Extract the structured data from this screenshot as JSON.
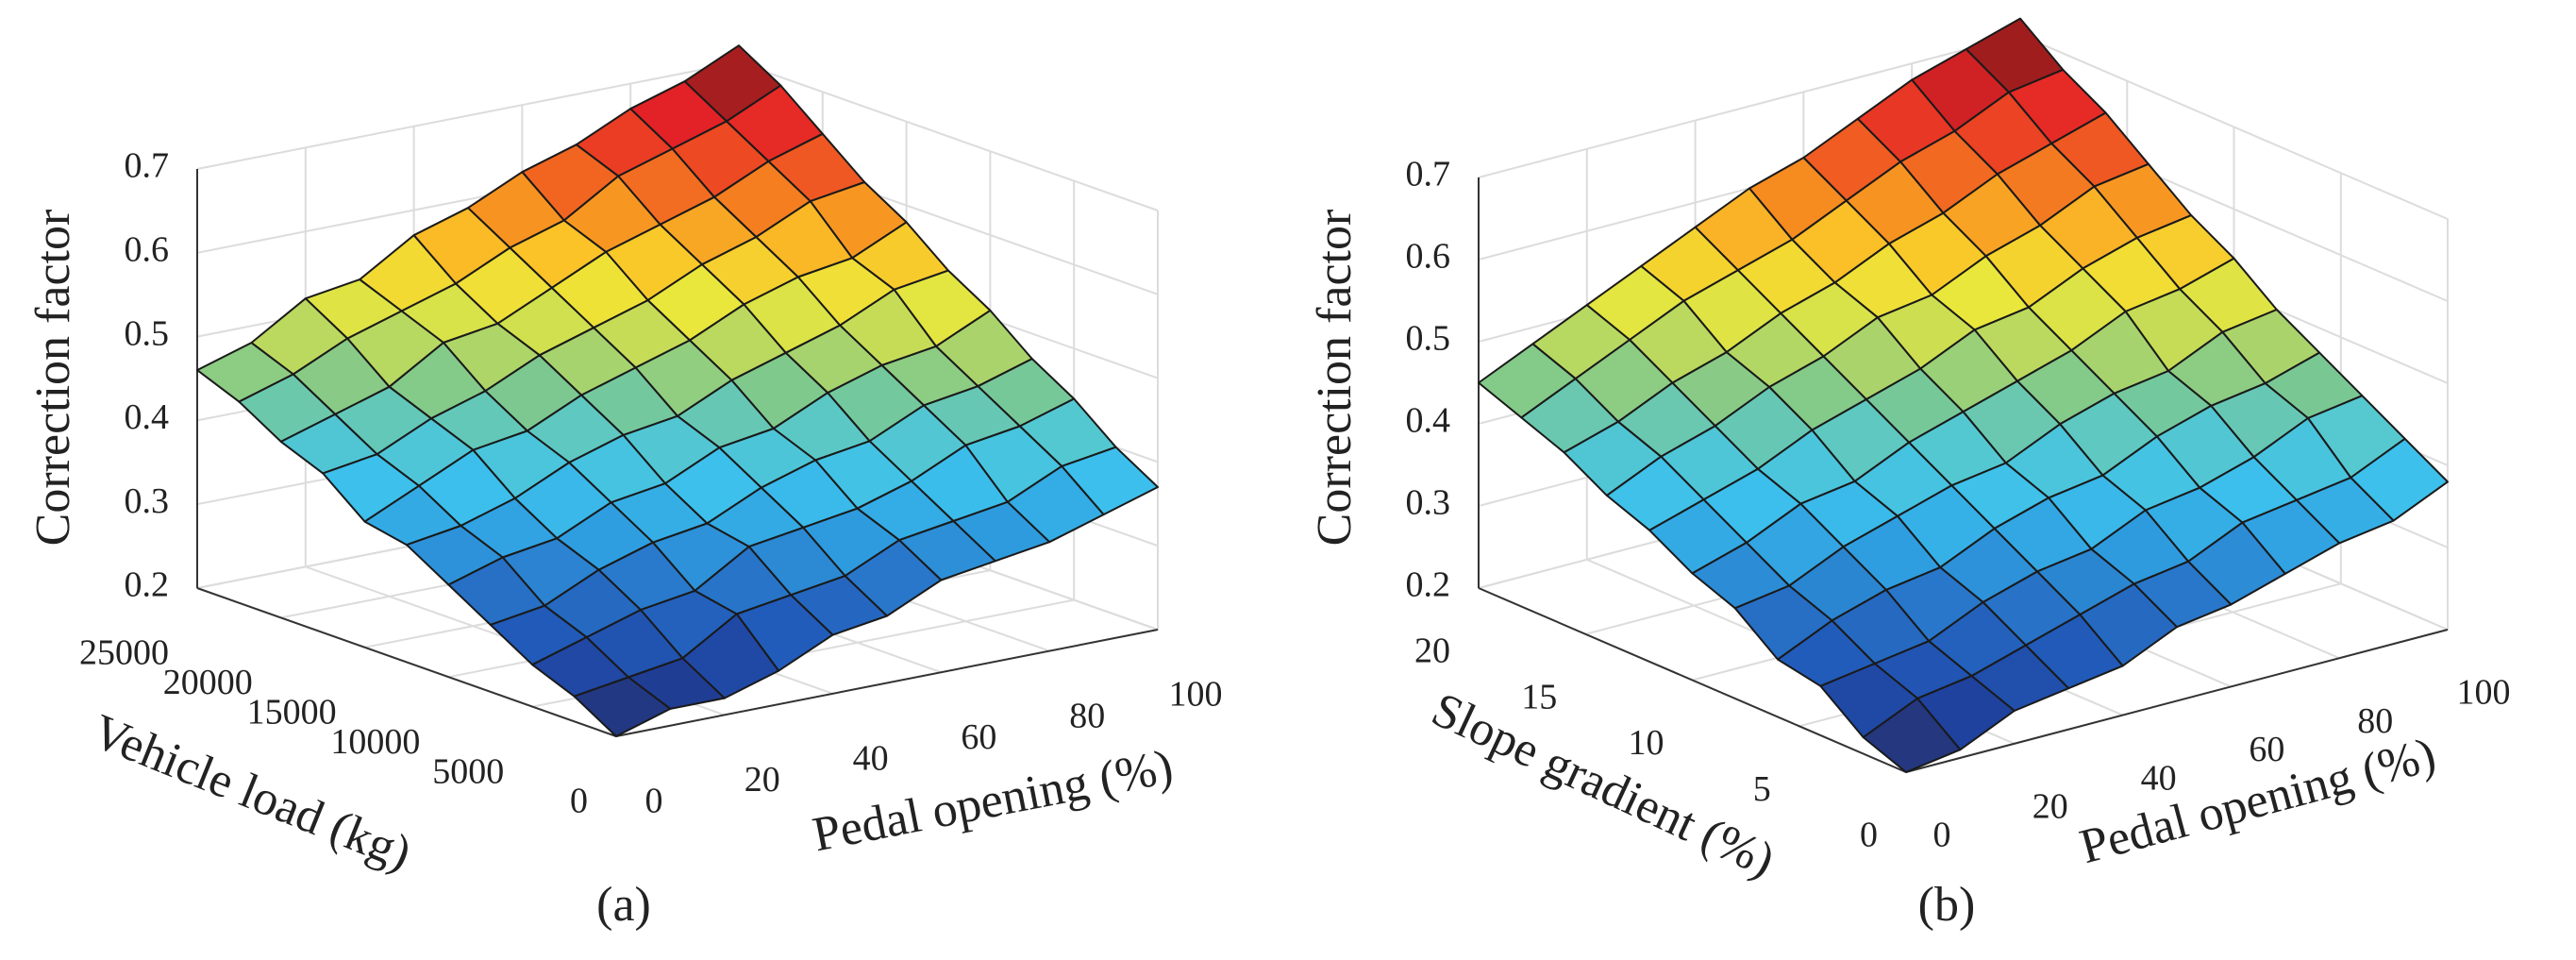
{
  "chart_data": [
    {
      "type": "surface",
      "panel_label": "(a)",
      "xlabel": "Pedal opening (%)",
      "ylabel": "Vehicle load (kg)",
      "zlabel": "Correction factor",
      "x": [
        0,
        10,
        20,
        30,
        40,
        50,
        60,
        70,
        80,
        90,
        100
      ],
      "y": [
        0,
        2500,
        5000,
        7500,
        10000,
        12500,
        15000,
        17500,
        20000,
        22500,
        25000
      ],
      "z": [
        [
          0.2,
          0.22,
          0.22,
          0.24,
          0.27,
          0.28,
          0.31,
          0.32,
          0.33,
          0.35,
          0.37
        ],
        [
          0.23,
          0.24,
          0.25,
          0.29,
          0.3,
          0.31,
          0.34,
          0.35,
          0.36,
          0.39,
          0.4
        ],
        [
          0.25,
          0.27,
          0.29,
          0.3,
          0.34,
          0.35,
          0.36,
          0.38,
          0.41,
          0.42,
          0.44
        ],
        [
          0.28,
          0.29,
          0.32,
          0.34,
          0.35,
          0.38,
          0.4,
          0.41,
          0.44,
          0.45,
          0.47
        ],
        [
          0.31,
          0.33,
          0.34,
          0.37,
          0.38,
          0.41,
          0.42,
          0.45,
          0.47,
          0.48,
          0.51
        ],
        [
          0.34,
          0.35,
          0.37,
          0.4,
          0.42,
          0.43,
          0.46,
          0.48,
          0.5,
          0.53,
          0.54
        ],
        [
          0.35,
          0.38,
          0.41,
          0.42,
          0.45,
          0.47,
          0.49,
          0.52,
          0.54,
          0.55,
          0.58
        ],
        [
          0.39,
          0.4,
          0.43,
          0.45,
          0.48,
          0.5,
          0.52,
          0.55,
          0.57,
          0.6,
          0.61
        ],
        [
          0.41,
          0.43,
          0.45,
          0.49,
          0.5,
          0.53,
          0.56,
          0.58,
          0.6,
          0.63,
          0.65
        ],
        [
          0.44,
          0.46,
          0.49,
          0.51,
          0.53,
          0.56,
          0.58,
          0.62,
          0.64,
          0.66,
          0.69
        ],
        [
          0.46,
          0.48,
          0.52,
          0.53,
          0.57,
          0.59,
          0.62,
          0.64,
          0.67,
          0.69,
          0.72
        ]
      ],
      "xlim": [
        0,
        100
      ],
      "ylim": [
        0,
        25000
      ],
      "zlim": [
        0.2,
        0.7
      ],
      "xticks": [
        0,
        20,
        40,
        60,
        80,
        100
      ],
      "yticks": [
        0,
        5000,
        10000,
        15000,
        20000,
        25000
      ],
      "zticks": [
        0.2,
        0.3,
        0.4,
        0.5,
        0.6,
        0.7
      ],
      "grid": true,
      "colormap": [
        "#2a2c5c",
        "#1f3f9a",
        "#2159b8",
        "#2874c8",
        "#2f9ee0",
        "#3cc0ec",
        "#55c8d0",
        "#7cc890",
        "#b8d860",
        "#ece83a",
        "#fbc428",
        "#f68a20",
        "#ee4e22",
        "#e42227",
        "#8e1c1c"
      ]
    },
    {
      "type": "surface",
      "panel_label": "(b)",
      "xlabel": "Pedal opening (%)",
      "ylabel": "Slope gradient (%)",
      "zlabel": "Correction factor",
      "x": [
        0,
        10,
        20,
        30,
        40,
        50,
        60,
        70,
        80,
        90,
        100
      ],
      "y": [
        0,
        2,
        4,
        6,
        8,
        10,
        12,
        14,
        16,
        18,
        20
      ],
      "z": [
        [
          0.2,
          0.21,
          0.24,
          0.25,
          0.26,
          0.29,
          0.3,
          0.32,
          0.34,
          0.35,
          0.38
        ],
        [
          0.22,
          0.25,
          0.26,
          0.28,
          0.3,
          0.32,
          0.33,
          0.36,
          0.37,
          0.38,
          0.41
        ],
        [
          0.26,
          0.27,
          0.28,
          0.31,
          0.33,
          0.34,
          0.37,
          0.38,
          0.4,
          0.43,
          0.44
        ],
        [
          0.27,
          0.3,
          0.32,
          0.33,
          0.36,
          0.38,
          0.39,
          0.42,
          0.44,
          0.45,
          0.47
        ],
        [
          0.31,
          0.32,
          0.35,
          0.37,
          0.39,
          0.4,
          0.43,
          0.45,
          0.46,
          0.49,
          0.5
        ],
        [
          0.33,
          0.35,
          0.38,
          0.39,
          0.42,
          0.44,
          0.46,
          0.48,
          0.51,
          0.52,
          0.54
        ],
        [
          0.36,
          0.38,
          0.4,
          0.43,
          0.45,
          0.47,
          0.5,
          0.51,
          0.54,
          0.56,
          0.57
        ],
        [
          0.38,
          0.41,
          0.43,
          0.46,
          0.48,
          0.51,
          0.52,
          0.55,
          0.57,
          0.6,
          0.61
        ],
        [
          0.41,
          0.43,
          0.46,
          0.48,
          0.51,
          0.53,
          0.56,
          0.58,
          0.61,
          0.63,
          0.65
        ],
        [
          0.43,
          0.46,
          0.49,
          0.52,
          0.54,
          0.56,
          0.59,
          0.62,
          0.64,
          0.67,
          0.68
        ],
        [
          0.45,
          0.48,
          0.51,
          0.54,
          0.57,
          0.6,
          0.62,
          0.65,
          0.68,
          0.7,
          0.72
        ]
      ],
      "xlim": [
        0,
        100
      ],
      "ylim": [
        0,
        20
      ],
      "zlim": [
        0.2,
        0.7
      ],
      "xticks": [
        0,
        20,
        40,
        60,
        80,
        100
      ],
      "yticks": [
        0,
        5,
        10,
        15,
        20
      ],
      "zticks": [
        0.2,
        0.3,
        0.4,
        0.5,
        0.6,
        0.7
      ],
      "grid": true,
      "colormap": [
        "#2a2c5c",
        "#1f3f9a",
        "#2159b8",
        "#2874c8",
        "#2f9ee0",
        "#3cc0ec",
        "#55c8d0",
        "#7cc890",
        "#b8d860",
        "#ece83a",
        "#fbc428",
        "#f68a20",
        "#ee4e22",
        "#e42227",
        "#8e1c1c"
      ]
    }
  ]
}
